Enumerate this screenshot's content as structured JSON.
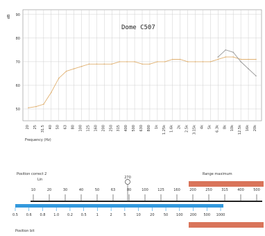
{
  "chart_data": [
    {
      "type": "line",
      "title": "Dome C507",
      "xlabel": "Frequency (Hz)",
      "ylabel": "dB",
      "y_ticks": [
        "90",
        "80",
        "70",
        "60",
        "50"
      ],
      "ylim": [
        45,
        92
      ],
      "grid": true,
      "categories": [
        "20",
        "25",
        "31.5",
        "40",
        "50",
        "63",
        "80",
        "100",
        "125",
        "160",
        "200",
        "250",
        "315",
        "400",
        "500",
        "630",
        "800",
        "1k",
        "1.25k",
        "1.6k",
        "2k",
        "2.5k",
        "3.15k",
        "4k",
        "5k",
        "6.3k",
        "8k",
        "10k",
        "12.5k",
        "16k",
        "20k"
      ],
      "series": [
        {
          "color": "#e0b070",
          "values": [
            50.5,
            51,
            52,
            57,
            63,
            66,
            67,
            68,
            69,
            69,
            69,
            69,
            70,
            70,
            70,
            69,
            69,
            70,
            70,
            71,
            71,
            70,
            70,
            70,
            70,
            71,
            72,
            72,
            71,
            71,
            71
          ]
        },
        {
          "color": "#999999",
          "values": [
            null,
            null,
            null,
            null,
            null,
            null,
            null,
            null,
            null,
            null,
            null,
            null,
            null,
            null,
            null,
            null,
            null,
            null,
            null,
            null,
            null,
            null,
            null,
            null,
            null,
            72,
            75,
            74,
            70,
            67,
            64
          ]
        }
      ]
    },
    {
      "type": "table",
      "title": "",
      "left_label": "Position correct 2",
      "left_sublabel": "Lin",
      "right_label": "Range maximum",
      "bottom_left_label": "Position bit",
      "bottom_right_label": "",
      "marker_label": "270",
      "top_scale": [
        "10",
        "20",
        "30",
        "40",
        "50",
        "63",
        "80",
        "100",
        "125",
        "160",
        "200",
        "250",
        "315",
        "400",
        "500"
      ],
      "bottom_scale": [
        "0.5",
        "0.6",
        "0.8",
        "1.0",
        "0.2",
        "0.5",
        "1",
        "2",
        "5",
        "10",
        "20",
        "50",
        "100",
        "200",
        "500",
        "1000"
      ],
      "colors": {
        "blue_bar": "#3399dd",
        "red_bar": "#d9745a",
        "axis": "#222222"
      }
    }
  ]
}
